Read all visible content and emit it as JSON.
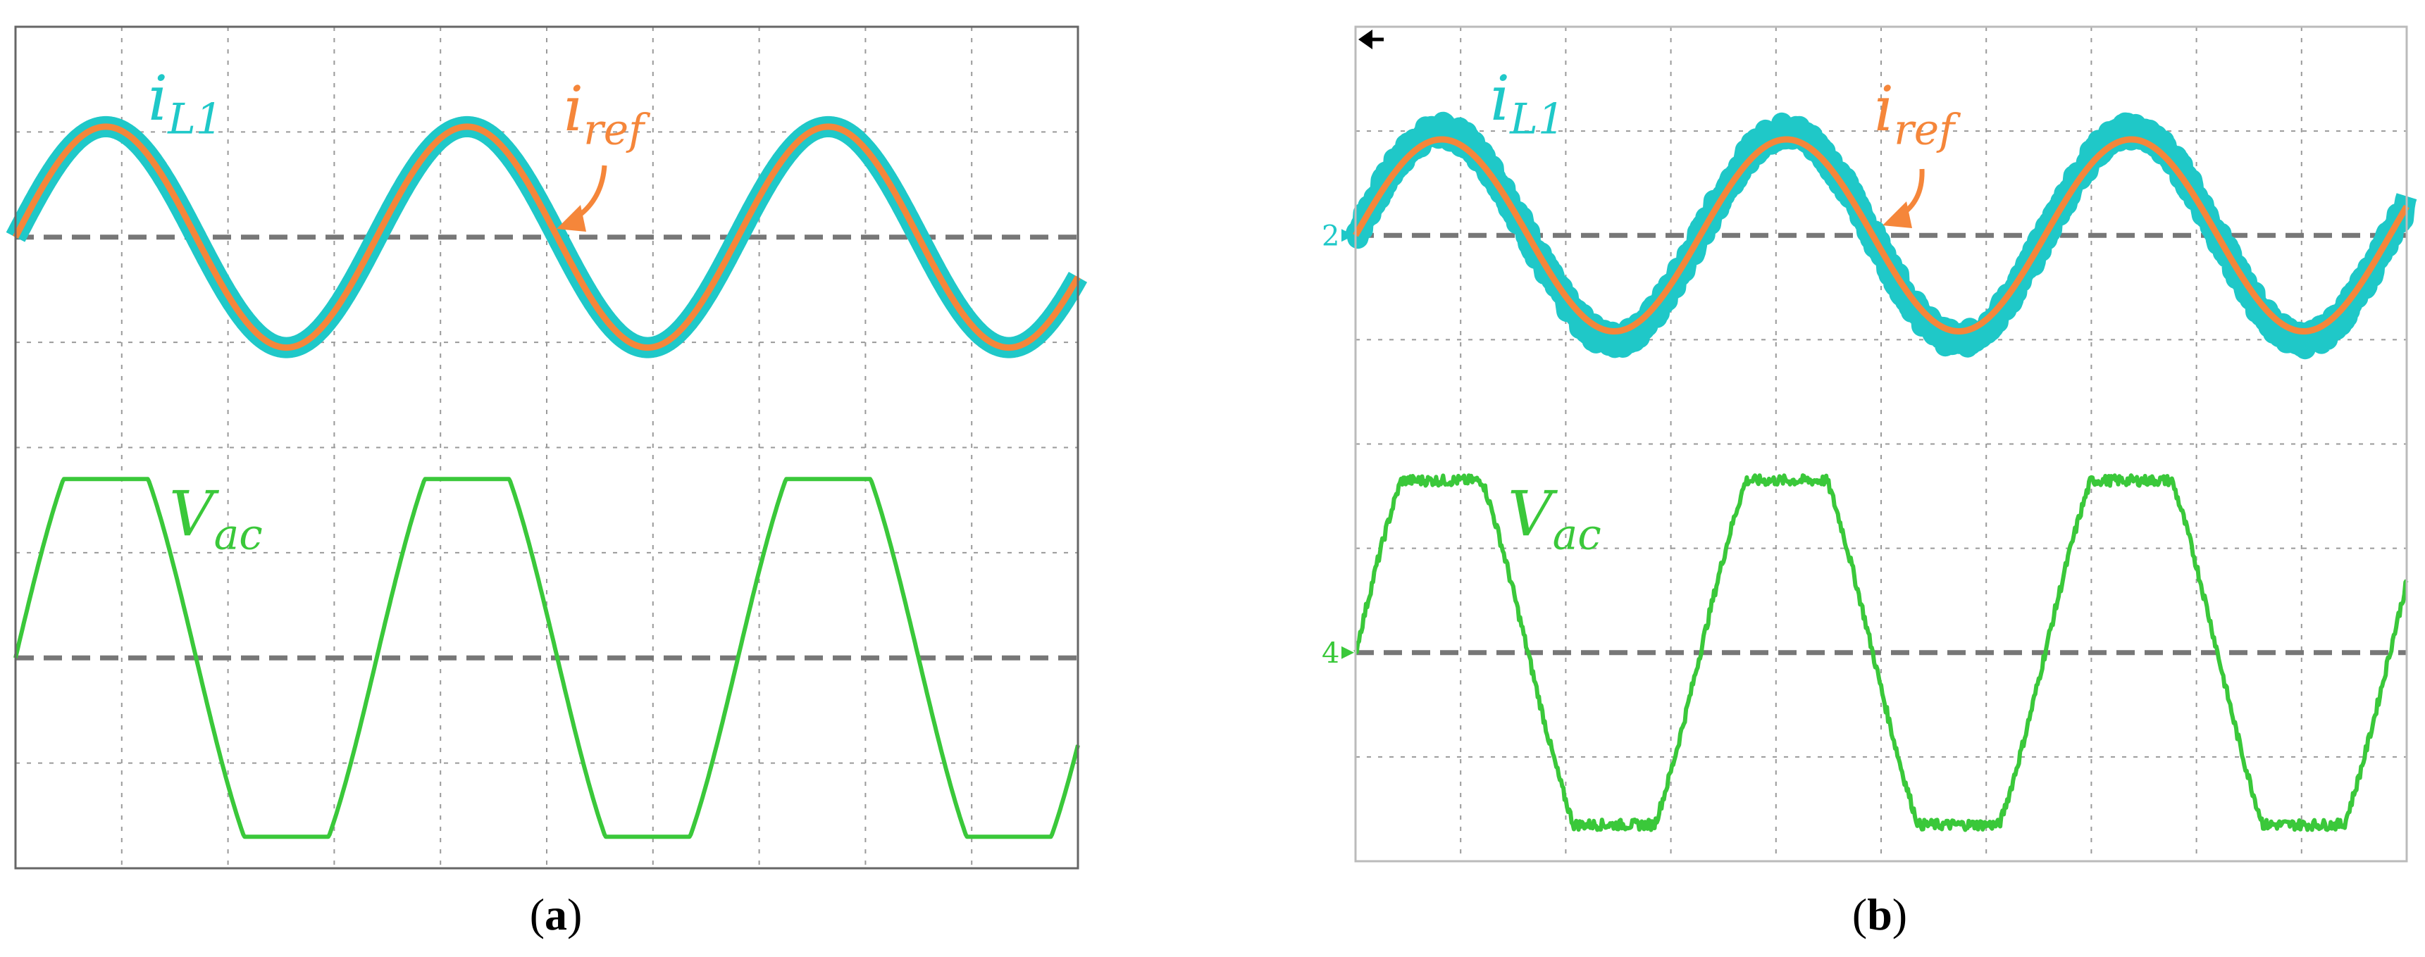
{
  "panels": [
    {
      "caption_letter": "a",
      "chart_data": {
        "type": "line",
        "grid": true,
        "x_divisions": 10,
        "y_divisions": 8,
        "period_divisions": 3.4,
        "series": [
          {
            "name": "i",
            "subscript": "L1",
            "color": "#1fc8c8",
            "band": true,
            "noise": 0.0,
            "shape": "sine",
            "amplitude": 1.0,
            "phase_divisions": 0.0,
            "zero_division": 2.0,
            "scale_divisions": 1.05
          },
          {
            "name": "i",
            "subscript": "ref",
            "color": "#f5863a",
            "shape": "sine",
            "amplitude": 1.0,
            "phase_divisions": 0.0,
            "zero_division": 2.0,
            "scale_divisions": 1.05
          },
          {
            "name": "V",
            "subscript": "ac",
            "color": "#3ac83a",
            "shape": "trapezoid",
            "amplitude": 1.0,
            "phase_divisions": 0.0,
            "zero_division": 6.0,
            "scale_divisions": 1.7
          }
        ],
        "baselines": [
          2.0,
          6.0
        ],
        "channel_markers": []
      }
    },
    {
      "caption_letter": "b",
      "chart_data": {
        "type": "line",
        "grid": true,
        "x_divisions": 10,
        "y_divisions": 8,
        "period_divisions": 3.28,
        "series": [
          {
            "name": "i",
            "subscript": "L1",
            "color": "#1fc8c8",
            "band": true,
            "noise": 0.09,
            "shape": "sine",
            "amplitude": 1.0,
            "phase_divisions": 0.0,
            "zero_division": 2.0,
            "scale_divisions": 1.0
          },
          {
            "name": "i",
            "subscript": "ref",
            "color": "#f5863a",
            "shape": "sine",
            "amplitude": 1.0,
            "phase_divisions": 0.0,
            "zero_division": 2.0,
            "scale_divisions": 0.92
          },
          {
            "name": "V",
            "subscript": "ac",
            "color": "#3ac83a",
            "shape": "trapezoid",
            "noise": 0.03,
            "amplitude": 1.0,
            "phase_divisions": 0.0,
            "zero_division": 6.0,
            "scale_divisions": 1.65
          }
        ],
        "baselines": [
          2.0,
          6.0
        ],
        "channel_markers": [
          {
            "label": "2",
            "color": "#1fc8c8",
            "division": 2.0
          },
          {
            "label": "4",
            "color": "#3ac83a",
            "division": 6.0
          }
        ]
      }
    }
  ]
}
